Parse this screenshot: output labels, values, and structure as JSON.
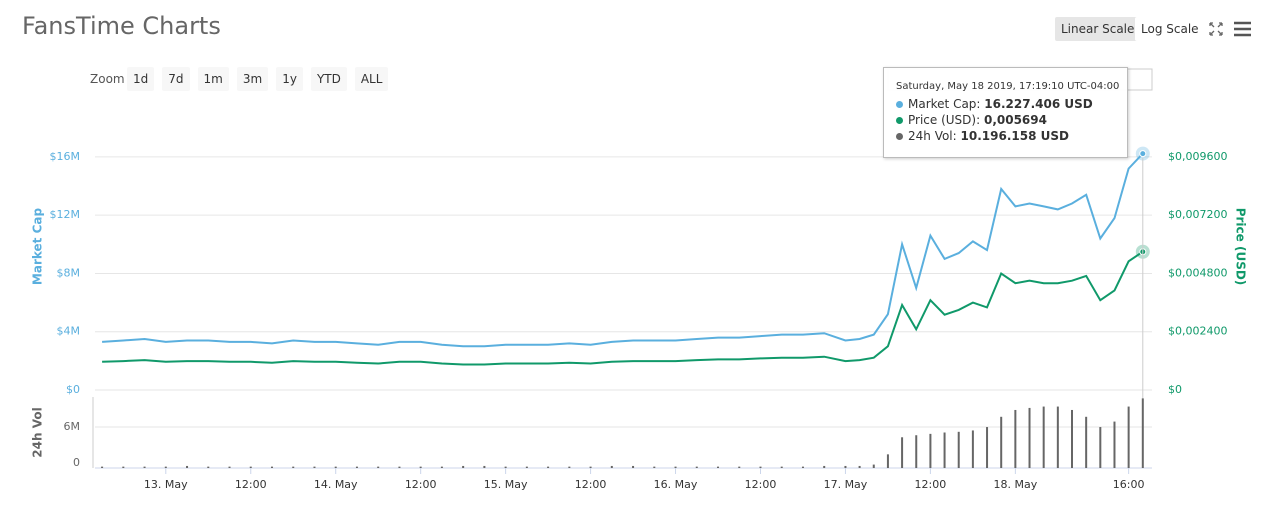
{
  "ui": {
    "title": "FansTime Charts",
    "scale_buttons": [
      "Linear Scale",
      "Log Scale"
    ],
    "zoom_label": "Zoom",
    "zoom_buttons": [
      "1d",
      "7d",
      "1m",
      "3m",
      "1y",
      "YTD",
      "ALL"
    ],
    "tooltip": {
      "date": "Saturday, May 18 2019, 17:19:10 UTC-04:00",
      "rows": [
        {
          "label": "Market Cap:",
          "value": "16.227.406 USD"
        },
        {
          "label": "Price (USD):",
          "value": "0,005694"
        },
        {
          "label": "24h Vol:",
          "value": "10.196.158 USD"
        }
      ]
    }
  },
  "chart_data": [
    {
      "type": "line",
      "ylabel": "Market Cap",
      "y2label": "Price (USD)",
      "x": [
        -9,
        -6,
        -3,
        0,
        3,
        6,
        9,
        12,
        15,
        18,
        21,
        24,
        27,
        30,
        33,
        36,
        39,
        42,
        45,
        48,
        51,
        54,
        57,
        60,
        63,
        66,
        69,
        72,
        75,
        78,
        81,
        84,
        87,
        90,
        93,
        96,
        98,
        100,
        102,
        104,
        106,
        108,
        110,
        112,
        114,
        116,
        118,
        120,
        122,
        124,
        126,
        128,
        130,
        132,
        134,
        136,
        138
      ],
      "xlim": [
        -10,
        139.3
      ],
      "ylim": [
        0,
        19700000
      ],
      "yticks": [
        {
          "value": 0,
          "label": "$0"
        },
        {
          "value": 4000000,
          "label": "$4M"
        },
        {
          "value": 8000000,
          "label": "$8M"
        },
        {
          "value": 12000000,
          "label": "$12M"
        },
        {
          "value": 16000000,
          "label": "$16M"
        }
      ],
      "y2lim": [
        0,
        0.01182
      ],
      "y2ticks": [
        {
          "value": 0,
          "label": "$0"
        },
        {
          "value": 0.0024,
          "label": "$0,002400"
        },
        {
          "value": 0.0048,
          "label": "$0,004800"
        },
        {
          "value": 0.0072,
          "label": "$0,007200"
        },
        {
          "value": 0.0096,
          "label": "$0,009600"
        }
      ],
      "grid": true,
      "series": [
        {
          "name": "Market Cap",
          "color": "#5aafde",
          "values": [
            3300000,
            3400000,
            3500000,
            3300000,
            3400000,
            3400000,
            3300000,
            3300000,
            3200000,
            3400000,
            3300000,
            3300000,
            3200000,
            3100000,
            3300000,
            3300000,
            3100000,
            3000000,
            3000000,
            3100000,
            3100000,
            3100000,
            3200000,
            3100000,
            3300000,
            3400000,
            3400000,
            3400000,
            3500000,
            3600000,
            3600000,
            3700000,
            3800000,
            3800000,
            3900000,
            3400000,
            3500000,
            3800000,
            5200000,
            10000000,
            7000000,
            10600000,
            9000000,
            9400000,
            10200000,
            9600000,
            13800000,
            12600000,
            12800000,
            12600000,
            12400000,
            12800000,
            13400000,
            10400000,
            11800000,
            15200000,
            16227406
          ]
        },
        {
          "name": "Price (USD)",
          "color": "#10996a",
          "axis": "y2",
          "values": [
            0.00116,
            0.00119,
            0.00123,
            0.00116,
            0.00119,
            0.00119,
            0.00116,
            0.00116,
            0.00112,
            0.00119,
            0.00116,
            0.00116,
            0.00112,
            0.00109,
            0.00116,
            0.00116,
            0.00109,
            0.00105,
            0.00105,
            0.00109,
            0.00109,
            0.00109,
            0.00112,
            0.00109,
            0.00116,
            0.00119,
            0.00119,
            0.00119,
            0.00123,
            0.00126,
            0.00126,
            0.0013,
            0.00133,
            0.00133,
            0.00137,
            0.00119,
            0.00123,
            0.00133,
            0.0018,
            0.0035,
            0.0025,
            0.0037,
            0.0031,
            0.0033,
            0.0036,
            0.0034,
            0.0048,
            0.0044,
            0.0045,
            0.0044,
            0.0044,
            0.0045,
            0.0047,
            0.0037,
            0.0041,
            0.0053,
            0.005694
          ]
        }
      ]
    },
    {
      "type": "bar",
      "ylabel": "24h Vol",
      "x": [
        -9,
        -6,
        -3,
        0,
        3,
        6,
        9,
        12,
        15,
        18,
        21,
        24,
        27,
        30,
        33,
        36,
        39,
        42,
        45,
        48,
        51,
        54,
        57,
        60,
        63,
        66,
        69,
        72,
        75,
        78,
        81,
        84,
        87,
        90,
        93,
        96,
        98,
        100,
        102,
        104,
        106,
        108,
        110,
        112,
        114,
        116,
        118,
        120,
        122,
        124,
        126,
        128,
        130,
        132,
        134,
        136,
        138
      ],
      "xlim": [
        -10,
        139.3
      ],
      "xticks": [
        {
          "value": 0,
          "label": "13. May"
        },
        {
          "value": 12,
          "label": "12:00"
        },
        {
          "value": 24,
          "label": "14. May"
        },
        {
          "value": 36,
          "label": "12:00"
        },
        {
          "value": 48,
          "label": "15. May"
        },
        {
          "value": 60,
          "label": "12:00"
        },
        {
          "value": 72,
          "label": "16. May"
        },
        {
          "value": 84,
          "label": "12:00"
        },
        {
          "value": 96,
          "label": "17. May"
        },
        {
          "value": 108,
          "label": "12:00"
        },
        {
          "value": 120,
          "label": "18. May"
        },
        {
          "value": 136,
          "label": "16:00"
        }
      ],
      "ylim": [
        0,
        10400000
      ],
      "yticks": [
        0,
        {
          "value": 6000000,
          "label": "6M"
        }
      ],
      "grid": true,
      "color": "#666666",
      "values": [
        200000,
        200000,
        200000,
        200000,
        300000,
        200000,
        200000,
        200000,
        200000,
        200000,
        200000,
        200000,
        200000,
        200000,
        200000,
        200000,
        200000,
        300000,
        300000,
        200000,
        200000,
        200000,
        200000,
        200000,
        300000,
        300000,
        200000,
        200000,
        200000,
        200000,
        200000,
        200000,
        200000,
        200000,
        300000,
        300000,
        300000,
        500000,
        2000000,
        4500000,
        4800000,
        5000000,
        5200000,
        5300000,
        5500000,
        6000000,
        7500000,
        8500000,
        8800000,
        9000000,
        9000000,
        8500000,
        7500000,
        6000000,
        6800000,
        9000000,
        10196158
      ]
    }
  ]
}
